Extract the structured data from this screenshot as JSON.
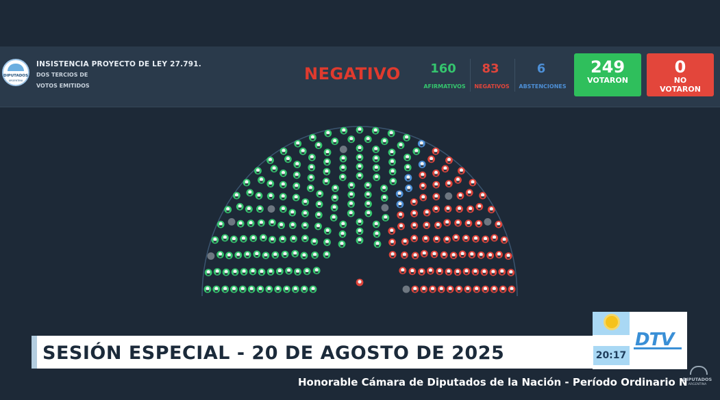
{
  "header": {
    "logo_text": "DIPUTADOS",
    "logo_sub": "ARGENTINA",
    "title": "INSISTENCIA PROYECTO DE LEY 27.791.",
    "sub1": "DOS TERCIOS DE",
    "sub2": "VOTOS EMITIDOS",
    "result": "NEGATIVO",
    "afirmativos_value": "160",
    "afirmativos_label": "AFIRMATIVOS",
    "negativos_value": "83",
    "negativos_label": "NEGATIVOS",
    "abstenciones_value": "6",
    "abstenciones_label": "ABSTENCIONES",
    "votaron_value": "249",
    "votaron_label": "VOTARON",
    "no_votaron_value": "0",
    "no_votaron_label1": "NO",
    "no_votaron_label2": "VOTARON"
  },
  "colors": {
    "afirmativo": "#35c56e",
    "negativo": "#e0453b",
    "abstencion": "#4d8fd6",
    "no_voto": "#6e7781",
    "votaron_box": "#2fbf5c",
    "no_votaron_box": "#e3463b"
  },
  "hemicycle": {
    "seats_total": 257,
    "afirmativos": 160,
    "negativos": 83,
    "abstenciones": 6,
    "ausentes": 8
  },
  "banner": {
    "text": "SESIÓN ESPECIAL - 20 DE AGOSTO DE 2025"
  },
  "clock": "20:17",
  "channel": {
    "name": "DTV"
  },
  "footer": "Honorable Cámara de Diputados de la Nación - Período Ordinario N",
  "watermark": {
    "line1": "DIPUTADOS",
    "line2": "ARGENTINA"
  }
}
